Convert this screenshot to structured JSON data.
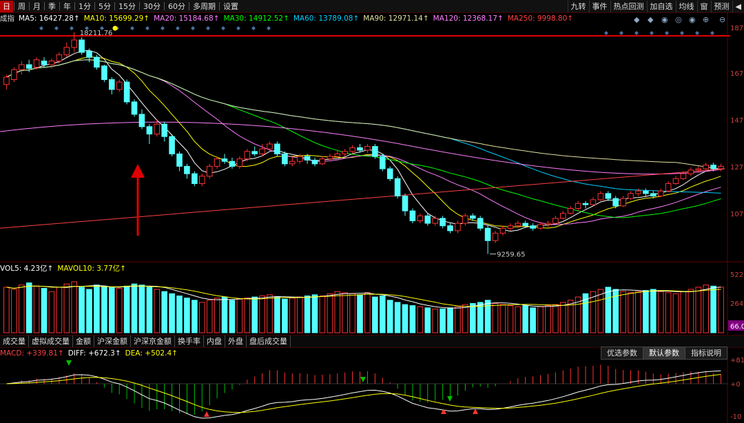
{
  "toolbar": {
    "periods": [
      "日",
      "周",
      "月",
      "季",
      "年",
      "1分",
      "5分",
      "15分",
      "30分",
      "60分",
      "多周期",
      "设置"
    ],
    "active_period": "日",
    "right_tools": [
      "九转",
      "事件",
      "热点回测",
      "加自选",
      "均线",
      "窗",
      "预测"
    ],
    "right_arrow": "◀"
  },
  "ma_legend": [
    {
      "label": "成指",
      "color": "#dddddd"
    },
    {
      "label": "MA5: 16427.28↑",
      "color": "#ffffff"
    },
    {
      "label": "MA10: 15699.29↑",
      "color": "#ffff00"
    },
    {
      "label": "MA20: 15184.68↑",
      "color": "#ff80ff"
    },
    {
      "label": "MA30: 14912.52↑",
      "color": "#00ff00"
    },
    {
      "label": "MA60: 13789.08↑",
      "color": "#00d0ff"
    },
    {
      "label": "MA90: 12971.14↑",
      "color": "#e0e0a0"
    },
    {
      "label": "MA120: 12368.17↑",
      "color": "#ff80ff"
    },
    {
      "label": "MA250: 9998.80↑",
      "color": "#ff4040"
    }
  ],
  "price_axis": [
    "187",
    "167",
    "147",
    "127",
    "107"
  ],
  "annotations": {
    "high": "18211.76",
    "low": "9259.65"
  },
  "vol_legend": [
    {
      "label": "VOL5: 4.23亿↑",
      "color": "#ffffff"
    },
    {
      "label": "MAVOL10: 3.77亿↑",
      "color": "#ffff00"
    }
  ],
  "vol_axis": [
    "522",
    "264",
    "66.0"
  ],
  "vol_tabs": [
    "成交量",
    "虚拟成交量",
    "金额",
    "沪深金额",
    "沪深京金额",
    "换手率",
    "内盘",
    "外盘",
    "盘后成交量"
  ],
  "macd_legend": [
    {
      "label": "MACD: +339.81↑",
      "color": "#ff4040"
    },
    {
      "label": "DIFF: +672.3↑",
      "color": "#ffffff"
    },
    {
      "label": "DEA: +502.4↑",
      "color": "#ffff00"
    }
  ],
  "macd_tabs": [
    "优选参数",
    "默认参数",
    "指标说明"
  ],
  "macd_axis": [
    "+81",
    "+0",
    "-10"
  ],
  "chart_data": {
    "type": "candlestick",
    "price_range": [
      9000,
      19000
    ],
    "candles": [
      [
        16100,
        16400,
        15900,
        16500
      ],
      [
        16300,
        16700,
        16200,
        16800
      ],
      [
        16700,
        16900,
        16500,
        17050
      ],
      [
        16900,
        16750,
        16600,
        17100
      ],
      [
        16800,
        17100,
        16700,
        17200
      ],
      [
        17050,
        16900,
        16800,
        17200
      ],
      [
        16900,
        17050,
        16750,
        17150
      ],
      [
        17050,
        17300,
        16950,
        17400
      ],
      [
        17300,
        17600,
        17200,
        17800
      ],
      [
        17600,
        17900,
        17400,
        18211.76
      ],
      [
        17900,
        17400,
        17300,
        18000
      ],
      [
        17450,
        17200,
        17000,
        17550
      ],
      [
        17200,
        16800,
        16700,
        17300
      ],
      [
        16850,
        16300,
        16200,
        16900
      ],
      [
        16300,
        15900,
        15700,
        16400
      ],
      [
        15900,
        16200,
        15800,
        16300
      ],
      [
        16200,
        15400,
        15300,
        16300
      ],
      [
        15400,
        14900,
        14800,
        15500
      ],
      [
        14900,
        14400,
        14300,
        15100
      ],
      [
        14400,
        14100,
        13700,
        14500
      ],
      [
        14100,
        14500,
        14000,
        14700
      ],
      [
        14500,
        14000,
        13800,
        14600
      ],
      [
        14000,
        13300,
        13200,
        14100
      ],
      [
        13300,
        12800,
        12600,
        13400
      ],
      [
        12800,
        12500,
        12300,
        12900
      ],
      [
        12500,
        12100,
        12000,
        12600
      ],
      [
        12100,
        12400,
        12000,
        12500
      ],
      [
        12400,
        12800,
        12300,
        12900
      ],
      [
        12800,
        13100,
        12700,
        13200
      ],
      [
        13100,
        13000,
        12900,
        13300
      ],
      [
        13000,
        12800,
        12700,
        13150
      ],
      [
        12800,
        13100,
        12700,
        13200
      ],
      [
        13100,
        13400,
        13000,
        13500
      ],
      [
        13400,
        13300,
        13200,
        13600
      ],
      [
        13300,
        13500,
        13200,
        13700
      ],
      [
        13500,
        13700,
        13400,
        13800
      ],
      [
        13700,
        13300,
        13200,
        13800
      ],
      [
        13300,
        12900,
        12800,
        13400
      ],
      [
        12900,
        13000,
        12800,
        13200
      ],
      [
        13000,
        13200,
        12900,
        13300
      ],
      [
        13200,
        13050,
        12900,
        13300
      ],
      [
        13050,
        12900,
        12800,
        13150
      ],
      [
        12900,
        13100,
        12850,
        13200
      ],
      [
        13100,
        13200,
        13000,
        13300
      ],
      [
        13200,
        13300,
        13100,
        13450
      ],
      [
        13300,
        13400,
        13200,
        13500
      ],
      [
        13400,
        13550,
        13300,
        13650
      ],
      [
        13550,
        13450,
        13350,
        13700
      ],
      [
        13450,
        13600,
        13350,
        13700
      ],
      [
        13600,
        13200,
        13100,
        13700
      ],
      [
        13200,
        12700,
        12600,
        13300
      ],
      [
        12700,
        12300,
        12200,
        12800
      ],
      [
        12300,
        11600,
        11500,
        12400
      ],
      [
        11600,
        11000,
        10800,
        11700
      ],
      [
        11000,
        10600,
        10500,
        11100
      ],
      [
        10600,
        10800,
        10500,
        10900
      ],
      [
        10800,
        10500,
        10400,
        10900
      ],
      [
        10500,
        10700,
        10400,
        10800
      ],
      [
        10700,
        10400,
        10300,
        10800
      ],
      [
        10400,
        10200,
        10100,
        10500
      ],
      [
        10200,
        10500,
        10100,
        10600
      ],
      [
        10500,
        10800,
        10400,
        10900
      ],
      [
        10800,
        10700,
        10600,
        10900
      ],
      [
        10700,
        10300,
        10200,
        10800
      ],
      [
        10300,
        9800,
        9259.65,
        10400
      ],
      [
        9800,
        10100,
        9700,
        10200
      ],
      [
        10100,
        10300,
        10000,
        10400
      ],
      [
        10300,
        10400,
        10200,
        10500
      ],
      [
        10400,
        10500,
        10300,
        10600
      ],
      [
        10500,
        10400,
        10300,
        10600
      ],
      [
        10400,
        10300,
        10200,
        10500
      ],
      [
        10300,
        10450,
        10250,
        10550
      ],
      [
        10450,
        10500,
        10350,
        10600
      ],
      [
        10500,
        10700,
        10450,
        10800
      ],
      [
        10700,
        10900,
        10650,
        11000
      ],
      [
        10900,
        11100,
        10850,
        11200
      ],
      [
        11100,
        11300,
        11000,
        11400
      ],
      [
        11300,
        11250,
        11100,
        11400
      ],
      [
        11250,
        11450,
        11200,
        11550
      ],
      [
        11450,
        11700,
        11400,
        11800
      ],
      [
        11700,
        11500,
        11400,
        11800
      ],
      [
        11500,
        11200,
        11100,
        11600
      ],
      [
        11200,
        11500,
        11150,
        11600
      ],
      [
        11500,
        11700,
        11450,
        11800
      ],
      [
        11700,
        11800,
        11600,
        11900
      ],
      [
        11800,
        11700,
        11600,
        11900
      ],
      [
        11700,
        11600,
        11500,
        11800
      ],
      [
        11600,
        11800,
        11550,
        11900
      ],
      [
        11800,
        12100,
        11750,
        12200
      ],
      [
        12100,
        12300,
        12050,
        12400
      ],
      [
        12300,
        12500,
        12250,
        12600
      ],
      [
        12500,
        12650,
        12400,
        12750
      ],
      [
        12650,
        12700,
        12550,
        12800
      ],
      [
        12700,
        12850,
        12600,
        12950
      ],
      [
        12850,
        12700,
        12600,
        12950
      ],
      [
        12700,
        12800,
        12600,
        12900
      ]
    ],
    "volume": [
      420,
      400,
      440,
      460,
      430,
      410,
      380,
      420,
      450,
      470,
      420,
      400,
      440,
      430,
      420,
      410,
      430,
      450,
      440,
      420,
      400,
      380,
      360,
      340,
      320,
      300,
      280,
      300,
      320,
      330,
      300,
      310,
      320,
      330,
      340,
      350,
      330,
      310,
      320,
      330,
      340,
      350,
      340,
      360,
      380,
      370,
      360,
      350,
      370,
      330,
      340,
      300,
      280,
      260,
      250,
      240,
      230,
      220,
      220,
      230,
      240,
      260,
      270,
      280,
      300,
      270,
      260,
      250,
      240,
      250,
      230,
      240,
      250,
      260,
      280,
      300,
      330,
      360,
      380,
      400,
      420,
      400,
      380,
      370,
      380,
      390,
      400,
      380,
      370,
      360,
      380,
      400,
      420,
      440,
      430,
      420
    ],
    "macd": {
      "legend": [
        "MACD: +339.81↑",
        "DIFF: +672.3↑",
        "DEA: +502.4↑"
      ]
    }
  }
}
